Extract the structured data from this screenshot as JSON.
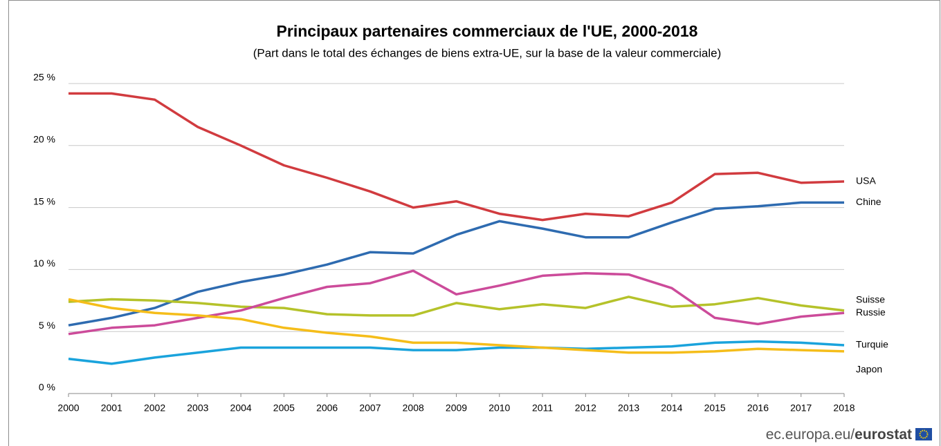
{
  "chart_data": {
    "type": "line",
    "title": "Principaux partenaires commerciaux de l'UE, 2000-2018",
    "subtitle": "(Part dans le total des échanges de biens extra-UE, sur la base de la valeur commerciale)",
    "categories": [
      "2000",
      "2001",
      "2002",
      "2003",
      "2004",
      "2005",
      "2006",
      "2007",
      "2008",
      "2009",
      "2010",
      "2011",
      "2012",
      "2013",
      "2014",
      "2015",
      "2016",
      "2017",
      "2018"
    ],
    "ylim": [
      0,
      25
    ],
    "yticks": [
      {
        "value": 0,
        "label": "0 %"
      },
      {
        "value": 5,
        "label": "5 %"
      },
      {
        "value": 10,
        "label": "10 %"
      },
      {
        "value": 15,
        "label": "15 %"
      },
      {
        "value": 20,
        "label": "20 %"
      },
      {
        "value": 25,
        "label": "25 %"
      }
    ],
    "grid": true,
    "series": [
      {
        "name": "USA",
        "color": "#d13b3f",
        "values": [
          24.2,
          24.2,
          23.7,
          21.5,
          20.0,
          18.4,
          17.4,
          16.3,
          15.0,
          15.5,
          14.5,
          14.0,
          14.5,
          14.3,
          15.4,
          17.7,
          17.8,
          17.0,
          17.1
        ]
      },
      {
        "name": "Chine",
        "color": "#2e6bb0",
        "values": [
          5.5,
          6.1,
          6.9,
          8.2,
          9.0,
          9.6,
          10.4,
          11.4,
          11.3,
          12.8,
          13.9,
          13.3,
          12.6,
          12.6,
          13.8,
          14.9,
          15.1,
          15.4,
          15.4
        ]
      },
      {
        "name": "Suisse",
        "color": "#b5c22a",
        "values": [
          7.4,
          7.6,
          7.5,
          7.3,
          7.0,
          6.9,
          6.4,
          6.3,
          6.3,
          7.3,
          6.8,
          7.2,
          6.9,
          7.8,
          7.0,
          7.2,
          7.7,
          7.1,
          6.7
        ]
      },
      {
        "name": "Russie",
        "color": "#cc4b9a",
        "values": [
          4.8,
          5.3,
          5.5,
          6.1,
          6.7,
          7.7,
          8.6,
          8.9,
          9.9,
          8.0,
          8.7,
          9.5,
          9.7,
          9.6,
          8.5,
          6.1,
          5.6,
          6.2,
          6.5
        ]
      },
      {
        "name": "Turquie",
        "color": "#1aa3dc",
        "values": [
          2.8,
          2.4,
          2.9,
          3.3,
          3.7,
          3.7,
          3.7,
          3.7,
          3.5,
          3.5,
          3.7,
          3.7,
          3.6,
          3.7,
          3.8,
          4.1,
          4.2,
          4.1,
          3.9
        ]
      },
      {
        "name": "Japon",
        "color": "#f5bd1a",
        "values": [
          7.6,
          6.9,
          6.5,
          6.3,
          6.0,
          5.3,
          4.9,
          4.6,
          4.1,
          4.1,
          3.9,
          3.7,
          3.5,
          3.3,
          3.3,
          3.4,
          3.6,
          3.5,
          3.4
        ]
      }
    ]
  },
  "footer": {
    "site": "ec.europa.eu/",
    "brand": "eurostat"
  }
}
